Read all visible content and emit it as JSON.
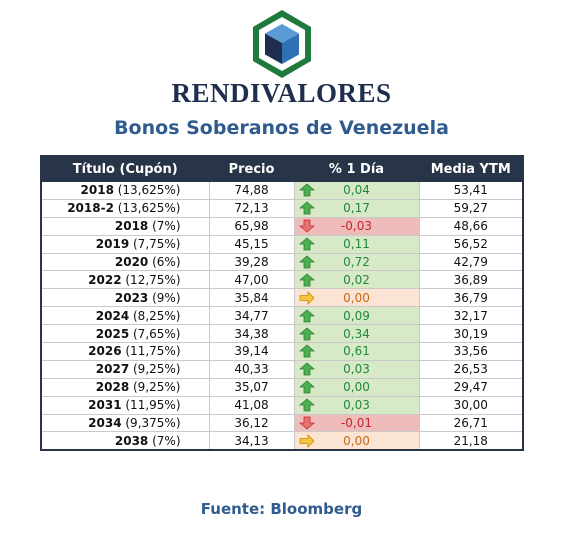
{
  "header": {
    "brand": "RENDIVALORES",
    "subtitle": "Bonos Soberanos de Venezuela"
  },
  "colors": {
    "brand_green": "#1f7a3d",
    "brand_blue": "#2f6fb3",
    "brand_navy": "#1f2d4e",
    "header_bg": "#283548",
    "up_bg": "#d8e9c7",
    "down_bg": "#efbcbc",
    "flat_bg": "#fbe4d4"
  },
  "table": {
    "columns": [
      "Título (Cupón)",
      "Precio",
      "% 1 Día",
      "Media YTM"
    ],
    "rows": [
      {
        "year": "2018",
        "coupon": " (13,625%)",
        "price": "74,88",
        "change": "0,04",
        "trend": "up",
        "ytm": "53,41"
      },
      {
        "year": "2018-2",
        "coupon": " (13,625%)",
        "price": "72,13",
        "change": "0,17",
        "trend": "up",
        "ytm": "59,27"
      },
      {
        "year": "2018",
        "coupon": " (7%)",
        "price": "65,98",
        "change": "-0,03",
        "trend": "down",
        "ytm": "48,66"
      },
      {
        "year": "2019",
        "coupon": " (7,75%)",
        "price": "45,15",
        "change": "0,11",
        "trend": "up",
        "ytm": "56,52"
      },
      {
        "year": "2020",
        "coupon": " (6%)",
        "price": "39,28",
        "change": "0,72",
        "trend": "up",
        "ytm": "42,79"
      },
      {
        "year": "2022",
        "coupon": " (12,75%)",
        "price": "47,00",
        "change": "0,02",
        "trend": "up",
        "ytm": "36,89"
      },
      {
        "year": "2023",
        "coupon": " (9%)",
        "price": "35,84",
        "change": "0,00",
        "trend": "flat",
        "ytm": "36,79"
      },
      {
        "year": "2024",
        "coupon": " (8,25%)",
        "price": "34,77",
        "change": "0,09",
        "trend": "up",
        "ytm": "32,17"
      },
      {
        "year": "2025",
        "coupon": " (7,65%)",
        "price": "34,38",
        "change": "0,34",
        "trend": "up",
        "ytm": "30,19"
      },
      {
        "year": "2026",
        "coupon": " (11,75%)",
        "price": "39,14",
        "change": "0,61",
        "trend": "up",
        "ytm": "33,56"
      },
      {
        "year": "2027",
        "coupon": " (9,25%)",
        "price": "40,33",
        "change": "0,03",
        "trend": "up",
        "ytm": "26,53"
      },
      {
        "year": "2028",
        "coupon": " (9,25%)",
        "price": "35,07",
        "change": "0,00",
        "trend": "up",
        "ytm": "29,47"
      },
      {
        "year": "2031",
        "coupon": " (11,95%)",
        "price": "41,08",
        "change": "0,03",
        "trend": "up",
        "ytm": "30,00"
      },
      {
        "year": "2034",
        "coupon": " (9,375%)",
        "price": "36,12",
        "change": "-0,01",
        "trend": "down",
        "ytm": "26,71"
      },
      {
        "year": "2038",
        "coupon": " (7%)",
        "price": "34,13",
        "change": "0,00",
        "trend": "flat",
        "ytm": "21,18"
      }
    ]
  },
  "footer": {
    "source": "Fuente: Bloomberg"
  }
}
